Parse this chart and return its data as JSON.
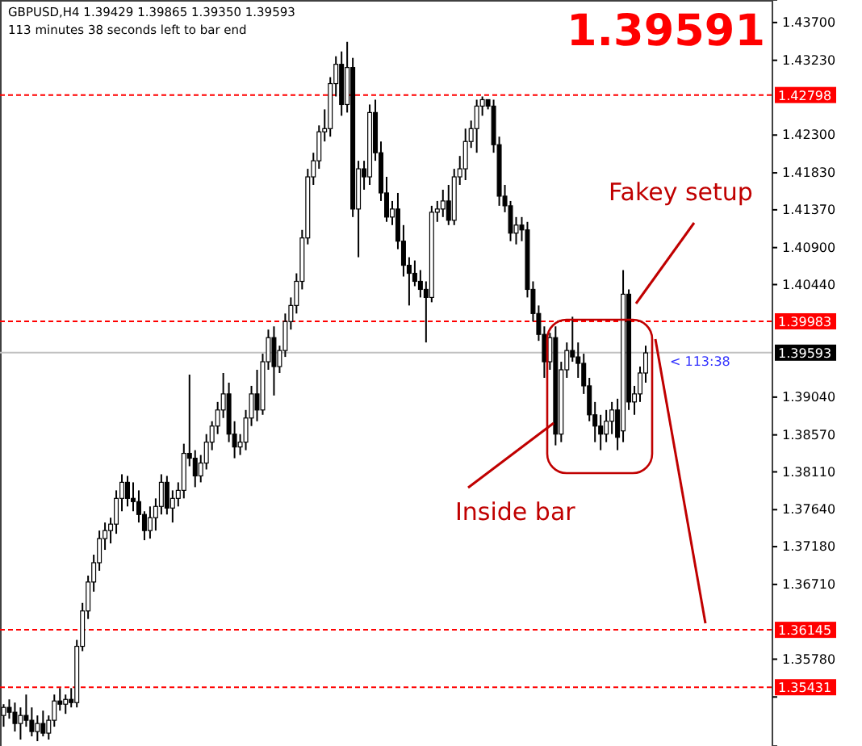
{
  "chart_data": {
    "type": "candlestick",
    "title": "GBPUSD,H4  1.39429 1.39865 1.39350 1.39593",
    "subtitle": "113 minutes 38 seconds left to bar end",
    "annotations": [
      "1.39591",
      "< 113:38",
      "Fakey setup",
      "Inside bar"
    ],
    "categories": [
      null,
      null,
      null,
      null,
      null,
      null,
      null,
      null,
      null,
      null,
      null,
      null,
      null,
      null,
      null,
      null,
      null,
      null,
      null,
      null,
      null,
      null,
      null,
      null,
      null,
      null,
      null,
      null,
      null,
      null,
      null,
      null,
      null,
      null,
      null,
      null,
      null,
      null,
      null,
      null,
      null,
      null,
      null,
      null,
      null,
      null,
      null,
      null,
      null,
      null,
      null,
      null,
      null,
      null,
      null,
      null,
      null,
      null,
      null,
      null,
      null,
      null,
      null,
      null,
      null,
      null,
      null,
      null,
      null,
      null,
      null,
      null,
      null,
      null,
      null,
      null,
      null,
      null,
      null,
      null,
      null,
      null,
      null,
      null,
      null,
      null,
      null,
      null,
      null,
      null,
      null,
      null,
      null,
      null,
      null,
      null,
      null,
      null,
      null,
      null,
      null,
      null,
      null,
      null,
      null,
      null,
      null,
      null,
      null,
      null,
      null,
      null,
      null,
      null,
      null,
      null,
      null,
      null,
      null,
      null,
      null,
      null,
      null,
      null,
      null,
      null,
      null,
      null,
      null,
      null,
      null,
      null,
      null,
      null,
      null,
      null,
      null
    ],
    "ohlc": [
      [
        1.3508,
        1.3522,
        1.3494,
        1.3518
      ],
      [
        1.3518,
        1.3528,
        1.3504,
        1.3512
      ],
      [
        1.3512,
        1.3524,
        1.3488,
        1.3498
      ],
      [
        1.3498,
        1.3518,
        1.3478,
        1.3508
      ],
      [
        1.3508,
        1.3534,
        1.3494,
        1.3502
      ],
      [
        1.3502,
        1.3518,
        1.3482,
        1.3488
      ],
      [
        1.3488,
        1.3508,
        1.3476,
        1.3498
      ],
      [
        1.3498,
        1.3514,
        1.3482,
        1.3486
      ],
      [
        1.3486,
        1.3508,
        1.3478,
        1.3502
      ],
      [
        1.3502,
        1.3534,
        1.3494,
        1.3526
      ],
      [
        1.3526,
        1.3542,
        1.3514,
        1.3522
      ],
      [
        1.3522,
        1.3534,
        1.351,
        1.3528
      ],
      [
        1.3528,
        1.3542,
        1.3518,
        1.3524
      ],
      [
        1.3524,
        1.3602,
        1.3518,
        1.3594
      ],
      [
        1.3594,
        1.3648,
        1.3588,
        1.3638
      ],
      [
        1.3638,
        1.3682,
        1.3628,
        1.3674
      ],
      [
        1.3674,
        1.3708,
        1.3662,
        1.3698
      ],
      [
        1.3698,
        1.3738,
        1.3688,
        1.3728
      ],
      [
        1.3728,
        1.3748,
        1.3714,
        1.3738
      ],
      [
        1.3738,
        1.3754,
        1.3722,
        1.3746
      ],
      [
        1.3746,
        1.3788,
        1.3734,
        1.3778
      ],
      [
        1.3778,
        1.3808,
        1.3762,
        1.3798
      ],
      [
        1.3798,
        1.3806,
        1.3768,
        1.3778
      ],
      [
        1.3778,
        1.3798,
        1.3762,
        1.3774
      ],
      [
        1.3774,
        1.3788,
        1.3748,
        1.3758
      ],
      [
        1.3758,
        1.3762,
        1.3726,
        1.3738
      ],
      [
        1.3738,
        1.3768,
        1.3728,
        1.3754
      ],
      [
        1.3754,
        1.3778,
        1.3738,
        1.3768
      ],
      [
        1.3768,
        1.3808,
        1.3758,
        1.3798
      ],
      [
        1.3798,
        1.3806,
        1.3758,
        1.3766
      ],
      [
        1.3766,
        1.3788,
        1.3748,
        1.3778
      ],
      [
        1.3778,
        1.3798,
        1.3768,
        1.3788
      ],
      [
        1.3788,
        1.3846,
        1.3778,
        1.3834
      ],
      [
        1.3834,
        1.3932,
        1.3818,
        1.3828
      ],
      [
        1.3828,
        1.3838,
        1.3792,
        1.3806
      ],
      [
        1.3806,
        1.3832,
        1.3798,
        1.3822
      ],
      [
        1.3822,
        1.3858,
        1.3814,
        1.3848
      ],
      [
        1.3848,
        1.3874,
        1.3838,
        1.3868
      ],
      [
        1.3868,
        1.3898,
        1.3858,
        1.3888
      ],
      [
        1.3888,
        1.3934,
        1.3878,
        1.3908
      ],
      [
        1.3908,
        1.3922,
        1.3848,
        1.3858
      ],
      [
        1.3858,
        1.3874,
        1.3828,
        1.3842
      ],
      [
        1.3842,
        1.3858,
        1.3832,
        1.3848
      ],
      [
        1.3848,
        1.3888,
        1.3838,
        1.3878
      ],
      [
        1.3878,
        1.3918,
        1.3868,
        1.3908
      ],
      [
        1.3908,
        1.3938,
        1.3874,
        1.3888
      ],
      [
        1.3888,
        1.3958,
        1.3882,
        1.3948
      ],
      [
        1.3948,
        1.3988,
        1.3938,
        1.3978
      ],
      [
        1.3978,
        1.3992,
        1.3906,
        1.3942
      ],
      [
        1.3942,
        1.3968,
        1.3934,
        1.3962
      ],
      [
        1.3962,
        1.4008,
        1.3954,
        1.3998
      ],
      [
        1.3998,
        1.4028,
        1.3988,
        1.4018
      ],
      [
        1.4018,
        1.4058,
        1.4008,
        1.4048
      ],
      [
        1.4048,
        1.4112,
        1.4038,
        1.4102
      ],
      [
        1.4102,
        1.4188,
        1.4094,
        1.4178
      ],
      [
        1.4178,
        1.4208,
        1.4168,
        1.4198
      ],
      [
        1.4198,
        1.4242,
        1.4188,
        1.4234
      ],
      [
        1.4234,
        1.4262,
        1.4222,
        1.4238
      ],
      [
        1.4238,
        1.4302,
        1.4228,
        1.4294
      ],
      [
        1.4294,
        1.4328,
        1.4278,
        1.4318
      ],
      [
        1.4318,
        1.4334,
        1.4254,
        1.4268
      ],
      [
        1.4268,
        1.4346,
        1.4258,
        1.4314
      ],
      [
        1.4314,
        1.4326,
        1.4128,
        1.4138
      ],
      [
        1.4138,
        1.4198,
        1.4078,
        1.4188
      ],
      [
        1.4188,
        1.4198,
        1.4162,
        1.4178
      ],
      [
        1.4178,
        1.4268,
        1.4168,
        1.4258
      ],
      [
        1.4258,
        1.4274,
        1.4198,
        1.4208
      ],
      [
        1.4208,
        1.4222,
        1.4148,
        1.4158
      ],
      [
        1.4158,
        1.4178,
        1.4122,
        1.4128
      ],
      [
        1.4128,
        1.4148,
        1.4118,
        1.4138
      ],
      [
        1.4138,
        1.4158,
        1.4088,
        1.4098
      ],
      [
        1.4098,
        1.4118,
        1.4054,
        1.4068
      ],
      [
        1.4068,
        1.4078,
        1.4018,
        1.4058
      ],
      [
        1.4058,
        1.4074,
        1.4042,
        1.4048
      ],
      [
        1.4048,
        1.4062,
        1.4028,
        1.4038
      ],
      [
        1.4038,
        1.4048,
        1.3972,
        1.4028
      ],
      [
        1.4028,
        1.4142,
        1.4022,
        1.4134
      ],
      [
        1.4134,
        1.4148,
        1.4122,
        1.4138
      ],
      [
        1.4138,
        1.4162,
        1.4128,
        1.4148
      ],
      [
        1.4148,
        1.4168,
        1.4118,
        1.4124
      ],
      [
        1.4124,
        1.4188,
        1.4118,
        1.4178
      ],
      [
        1.4178,
        1.4204,
        1.4168,
        1.4188
      ],
      [
        1.4188,
        1.4238,
        1.4174,
        1.4222
      ],
      [
        1.4222,
        1.4248,
        1.4214,
        1.4238
      ],
      [
        1.4238,
        1.4274,
        1.4208,
        1.4266
      ],
      [
        1.4266,
        1.4278,
        1.4254,
        1.4274
      ],
      [
        1.4274,
        1.4274,
        1.4262,
        1.4266
      ],
      [
        1.4266,
        1.4274,
        1.4208,
        1.4218
      ],
      [
        1.4218,
        1.4228,
        1.4142,
        1.4154
      ],
      [
        1.4154,
        1.4168,
        1.4134,
        1.4142
      ],
      [
        1.4142,
        1.4148,
        1.4098,
        1.4108
      ],
      [
        1.4108,
        1.4128,
        1.4094,
        1.4118
      ],
      [
        1.4118,
        1.4128,
        1.4098,
        1.4112
      ],
      [
        1.4112,
        1.4122,
        1.4028,
        1.4038
      ],
      [
        1.4038,
        1.4048,
        1.3998,
        1.4008
      ],
      [
        1.4008,
        1.4018,
        1.3974,
        1.3982
      ],
      [
        1.3982,
        1.3992,
        1.3928,
        1.3948
      ],
      [
        1.3948,
        1.3984,
        1.3938,
        1.3978
      ],
      [
        1.3978,
        1.3992,
        1.3844,
        1.3858
      ],
      [
        1.3858,
        1.3948,
        1.3848,
        1.3938
      ],
      [
        1.3938,
        1.3972,
        1.3928,
        1.3962
      ],
      [
        1.3962,
        1.4004,
        1.3948,
        1.3954
      ],
      [
        1.3954,
        1.3972,
        1.3928,
        1.3946
      ],
      [
        1.3946,
        1.3958,
        1.3908,
        1.3918
      ],
      [
        1.3918,
        1.3928,
        1.3874,
        1.3882
      ],
      [
        1.3882,
        1.3898,
        1.3848,
        1.3868
      ],
      [
        1.3868,
        1.3882,
        1.3838,
        1.3858
      ],
      [
        1.3858,
        1.3888,
        1.3848,
        1.3874
      ],
      [
        1.3874,
        1.3898,
        1.3858,
        1.3888
      ],
      [
        1.3888,
        1.3902,
        1.3838,
        1.3854
      ],
      [
        1.3862,
        1.4062,
        1.3848,
        1.4032
      ],
      [
        1.4032,
        1.4038,
        1.3888,
        1.3898
      ],
      [
        1.3898,
        1.3918,
        1.3882,
        1.3908
      ],
      [
        1.3908,
        1.3942,
        1.3898,
        1.3934
      ],
      [
        1.3934,
        1.3968,
        1.3922,
        1.3959
      ],
      null,
      null,
      null,
      null,
      null,
      null,
      null,
      null,
      null,
      null,
      null,
      null,
      null,
      null,
      null,
      null,
      null,
      null,
      null,
      null,
      null,
      null
    ],
    "colors": [
      "#ffffff",
      "#000000",
      "#000000",
      "#ffffff",
      "#000000",
      "#000000",
      "#ffffff",
      "#000000",
      "#ffffff",
      "#ffffff",
      "#000000",
      "#ffffff",
      "#000000",
      "#ffffff",
      "#ffffff",
      "#ffffff",
      "#ffffff",
      "#ffffff",
      "#ffffff",
      "#ffffff",
      "#ffffff",
      "#ffffff",
      "#000000",
      "#000000",
      "#000000",
      "#000000",
      "#ffffff",
      "#ffffff",
      "#ffffff",
      "#000000",
      "#ffffff",
      "#ffffff",
      "#ffffff",
      "#000000",
      "#000000",
      "#ffffff",
      "#ffffff",
      "#ffffff",
      "#ffffff",
      "#ffffff",
      "#000000",
      "#000000",
      "#ffffff",
      "#ffffff",
      "#ffffff",
      "#000000",
      "#ffffff",
      "#ffffff",
      "#000000",
      "#ffffff",
      "#ffffff",
      "#ffffff",
      "#ffffff",
      "#ffffff",
      "#ffffff",
      "#ffffff",
      "#ffffff",
      "#ffffff",
      "#ffffff",
      "#ffffff",
      "#000000",
      "#ffffff",
      "#000000",
      "#ffffff",
      "#000000",
      "#ffffff",
      "#000000",
      "#000000",
      "#000000",
      "#ffffff",
      "#000000",
      "#000000",
      "#000000",
      "#000000",
      "#000000",
      "#000000",
      "#ffffff",
      "#ffffff",
      "#ffffff",
      "#000000",
      "#ffffff",
      "#ffffff",
      "#ffffff",
      "#ffffff",
      "#ffffff",
      "#ffffff",
      "#000000",
      "#000000",
      "#000000",
      "#000000",
      "#000000",
      "#ffffff",
      "#000000",
      "#000000",
      "#000000",
      "#000000",
      "#000000",
      "#ffffff",
      "#000000",
      "#ffffff",
      "#ffffff",
      "#000000",
      "#000000",
      "#000000",
      "#000000",
      "#000000",
      "#000000",
      "#ffffff",
      "#ffffff",
      "#000000",
      "#ffffff",
      "#000000",
      "#ffffff",
      "#ffffff",
      "#ffffff",
      null,
      null,
      null,
      null,
      null,
      null,
      null,
      null,
      null,
      null,
      null,
      null,
      null,
      null,
      null,
      null,
      null,
      null,
      null,
      null,
      null,
      null
    ],
    "ylim": [
      1.347,
      1.4398
    ],
    "yticks": [
      {
        "value": 1.437,
        "label": "1.43700"
      },
      {
        "value": 1.4323,
        "label": "1.43230"
      },
      {
        "value": 1.423,
        "label": "1.42300"
      },
      {
        "value": 1.4183,
        "label": "1.41830"
      },
      {
        "value": 1.4137,
        "label": "1.41370"
      },
      {
        "value": 1.409,
        "label": "1.40900"
      },
      {
        "value": 1.4044,
        "label": "1.40440"
      },
      {
        "value": 1.3904,
        "label": "1.39040"
      },
      {
        "value": 1.3857,
        "label": "1.38570"
      },
      {
        "value": 1.3811,
        "label": "1.38110"
      },
      {
        "value": 1.3764,
        "label": "1.37640"
      },
      {
        "value": 1.3718,
        "label": "1.37180"
      },
      {
        "value": 1.3671,
        "label": "1.36710"
      },
      {
        "value": 1.3578,
        "label": "1.35780"
      },
      {
        "value": 1.3531,
        "label": null
      }
    ],
    "ref_lines": [
      {
        "axis": "y",
        "value": 1.42798,
        "label": "1.42798",
        "color": "#ff0000",
        "line_style": "dashed"
      },
      {
        "axis": "y",
        "value": 1.39983,
        "label": "1.39983",
        "color": "#ff0000",
        "line_style": "dashed"
      },
      {
        "axis": "y",
        "value": 1.36145,
        "label": "1.36145",
        "color": "#ff0000",
        "line_style": "dashed"
      },
      {
        "axis": "y",
        "value": 1.35431,
        "label": "1.35431",
        "color": "#ff0000",
        "line_style": "dashed"
      },
      {
        "axis": "y",
        "value": 1.39593,
        "label": "1.39593",
        "color": "#c0c0c0",
        "line_style": "solid"
      }
    ],
    "grid": false
  }
}
